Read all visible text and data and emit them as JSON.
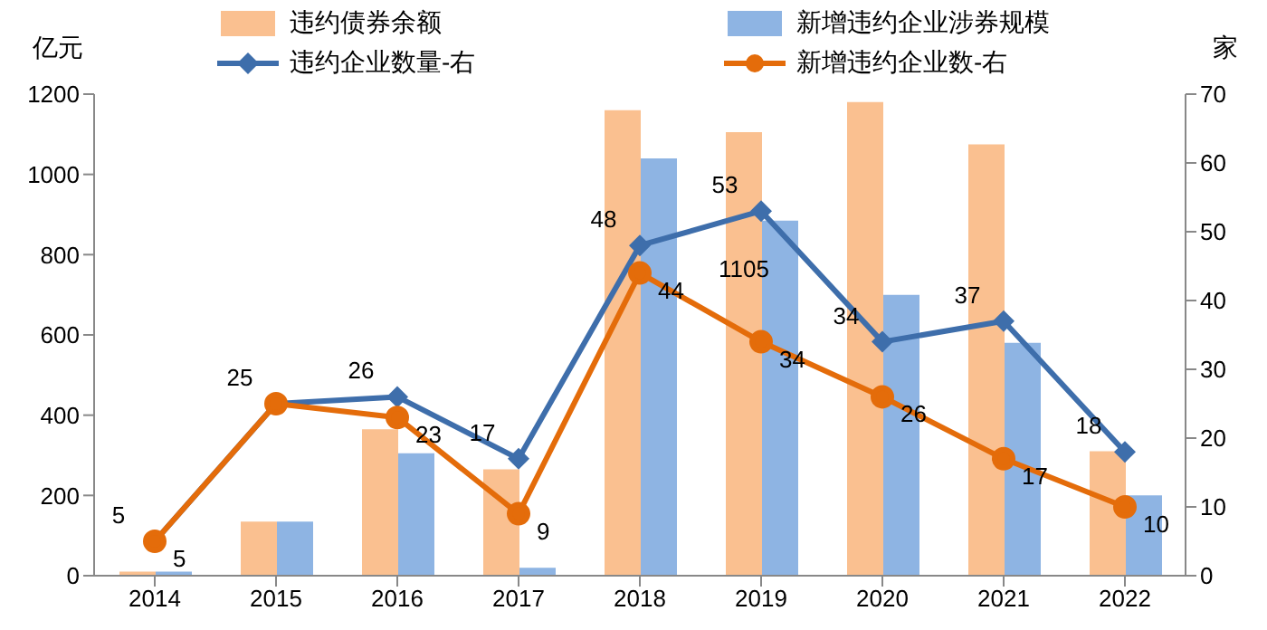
{
  "chart_data": {
    "type": "bar",
    "categories": [
      "2014",
      "2015",
      "2016",
      "2017",
      "2018",
      "2019",
      "2020",
      "2021",
      "2022"
    ],
    "ylabel": "亿元",
    "y2label": "家",
    "ylim": [
      0,
      1200
    ],
    "yticks": [
      0,
      200,
      400,
      600,
      800,
      1000,
      1200
    ],
    "y2lim": [
      0,
      70
    ],
    "y2ticks": [
      0,
      10,
      20,
      30,
      40,
      50,
      60,
      70
    ],
    "grid": false,
    "legend": "top",
    "series": [
      {
        "name": "违约债券余额",
        "color": "#fac090",
        "values": [
          10,
          135,
          365,
          265,
          1160,
          1105,
          1180,
          1075,
          310
        ],
        "value_labels": [
          null,
          null,
          null,
          null,
          null,
          "1105",
          null,
          null,
          null
        ]
      },
      {
        "name": "新增违约企业涉券规模",
        "color": "#8eb4e3",
        "values": [
          10,
          135,
          305,
          20,
          1040,
          885,
          700,
          580,
          200
        ]
      },
      {
        "name": "违约企业数量-右",
        "type": "line",
        "axis": "y2",
        "marker": "diamond",
        "color": "#3e6eab",
        "values": [
          5,
          25,
          26,
          17,
          48,
          53,
          34,
          37,
          18
        ],
        "value_labels": [
          "5",
          "25",
          "26",
          "17",
          "48",
          "53",
          "34",
          "37",
          "18"
        ]
      },
      {
        "name": "新增违约企业数-右",
        "type": "line",
        "axis": "y2",
        "marker": "circle",
        "color": "#e46c0a",
        "values": [
          5,
          25,
          23,
          9,
          44,
          34,
          26,
          17,
          10
        ],
        "value_labels": [
          "5",
          null,
          "23",
          "9",
          "44",
          "34",
          "26",
          "17",
          "10"
        ]
      }
    ]
  }
}
